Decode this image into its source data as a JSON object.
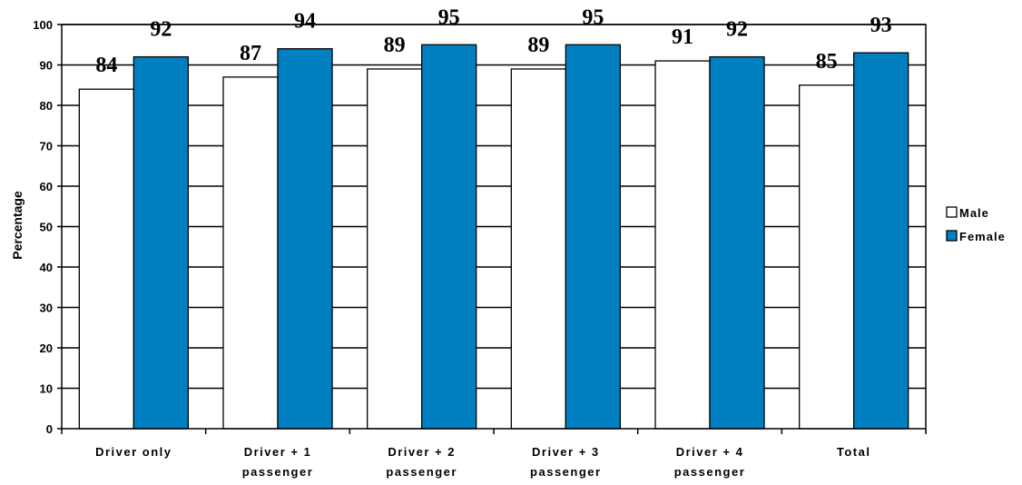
{
  "chart_data": {
    "type": "bar",
    "title": "",
    "xlabel": "",
    "ylabel": "Percentage",
    "ylim": [
      0,
      100
    ],
    "yticks": [
      0,
      10,
      20,
      30,
      40,
      50,
      60,
      70,
      80,
      90,
      100
    ],
    "grid": true,
    "legend_position": "right",
    "categories": [
      [
        "Driver only"
      ],
      [
        "Driver + 1",
        "passenger"
      ],
      [
        "Driver + 2",
        "passenger"
      ],
      [
        "Driver + 3",
        "passenger"
      ],
      [
        "Driver + 4",
        "passenger"
      ],
      [
        "Total"
      ]
    ],
    "series": [
      {
        "name": "Male",
        "values": [
          84,
          87,
          89,
          89,
          91,
          85
        ],
        "color": "#ffffff"
      },
      {
        "name": "Female",
        "values": [
          92,
          94,
          95,
          95,
          92,
          93
        ],
        "color": "#0080c0"
      }
    ]
  }
}
